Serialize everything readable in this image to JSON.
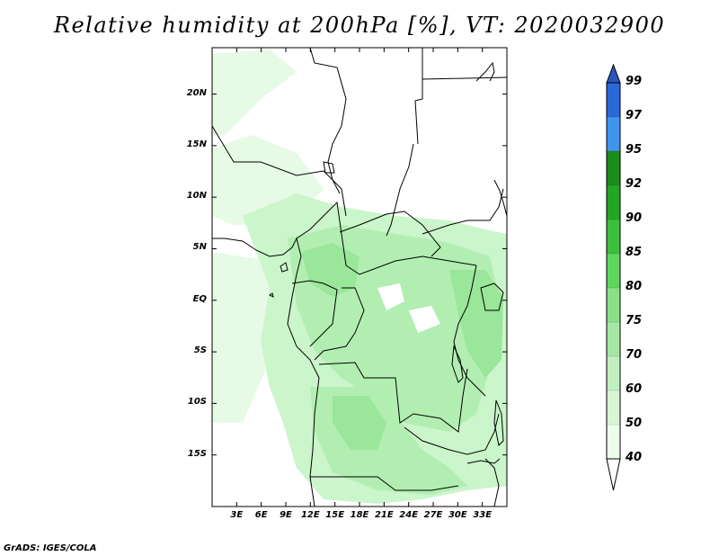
{
  "title": "Relative humidity at 200hPa [%], VT: 2020032900",
  "credit": "GrADS: IGES/COLA",
  "variable": "Relative humidity",
  "level": "200hPa",
  "units": "%",
  "valid_time": "2020032900",
  "map": {
    "lon_range": [
      0,
      36
    ],
    "lat_range": [
      -20,
      24.5
    ],
    "lat_ticks": [
      {
        "value": 20,
        "label": "20N"
      },
      {
        "value": 15,
        "label": "15N"
      },
      {
        "value": 10,
        "label": "10N"
      },
      {
        "value": 5,
        "label": "5N"
      },
      {
        "value": 0,
        "label": "EQ"
      },
      {
        "value": -5,
        "label": "5S"
      },
      {
        "value": -10,
        "label": "10S"
      },
      {
        "value": -15,
        "label": "15S"
      }
    ],
    "lon_ticks": [
      {
        "value": 3,
        "label": "3E"
      },
      {
        "value": 6,
        "label": "6E"
      },
      {
        "value": 9,
        "label": "9E"
      },
      {
        "value": 12,
        "label": "12E"
      },
      {
        "value": 15,
        "label": "15E"
      },
      {
        "value": 18,
        "label": "18E"
      },
      {
        "value": 21,
        "label": "21E"
      },
      {
        "value": 24,
        "label": "24E"
      },
      {
        "value": 27,
        "label": "27E"
      },
      {
        "value": 30,
        "label": "30E"
      },
      {
        "value": 33,
        "label": "33E"
      }
    ],
    "colors": {
      "c40": "#e6fae6",
      "c50": "#cbf5cb",
      "c60": "#b2eeb2",
      "c70": "#9ae69a",
      "border": "#000000"
    }
  },
  "colorbar": {
    "levels": [
      "40",
      "50",
      "60",
      "70",
      "75",
      "80",
      "85",
      "90",
      "92",
      "95",
      "97",
      "99"
    ],
    "colors": [
      "#ffffff",
      "#eefced",
      "#d8f5d6",
      "#c1efbf",
      "#a6e6a4",
      "#8ae089",
      "#5ed65e",
      "#3bc03b",
      "#22a722",
      "#1a8d1a",
      "#3f94ee",
      "#2a6ad8",
      "#2a55c0"
    ]
  }
}
